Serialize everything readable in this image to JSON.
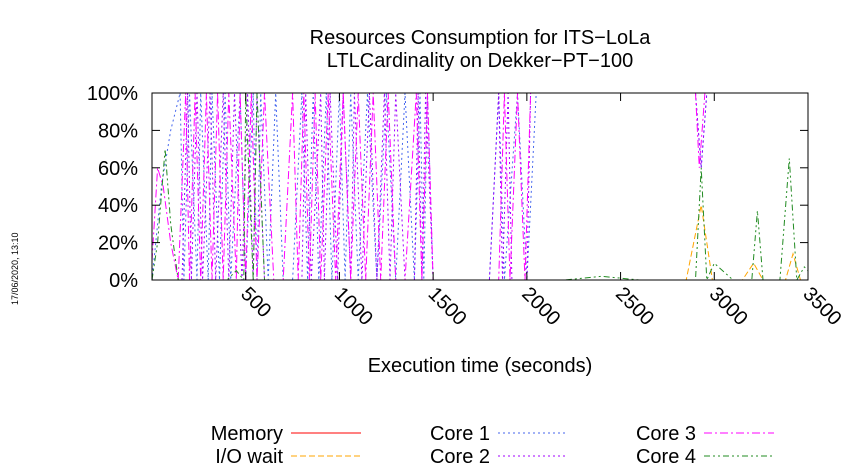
{
  "stamp": "17/06/2020, 13:10",
  "chart_data": {
    "type": "line",
    "title": "Resources Consumption for ITS−LoLa",
    "subtitle": "LTLCardinality on Dekker−PT−100",
    "xlabel": "Execution time (seconds)",
    "ylabel": "",
    "xlim": [
      0,
      3500
    ],
    "ylim": [
      0,
      100
    ],
    "xticks": [
      500,
      1000,
      1500,
      2000,
      2500,
      3000,
      3500
    ],
    "xtick_labels": [
      "500",
      "1000",
      "1500",
      "2000",
      "2500",
      "3000",
      "3500"
    ],
    "yticks": [
      0,
      20,
      40,
      60,
      80,
      100
    ],
    "ytick_labels": [
      "0%",
      "20%",
      "40%",
      "60%",
      "80%",
      "100%"
    ],
    "grid": false,
    "legend_position": "bottom",
    "series": [
      {
        "name": "Memory",
        "color": "#ff0000",
        "dash": "solid",
        "x": [
          0,
          3500
        ],
        "y": [
          0,
          0
        ]
      },
      {
        "name": "I/O wait",
        "color": "#ffa500",
        "dash": "dashed",
        "x": [
          0,
          2850,
          2930,
          2990,
          3150,
          3210,
          3260,
          3380,
          3420,
          3460,
          3500
        ],
        "y": [
          0,
          0,
          40,
          0,
          0,
          9,
          0,
          0,
          14,
          0,
          0
        ]
      },
      {
        "name": "Core 1",
        "color": "#4466ee",
        "dash": "dotted",
        "x": [
          0,
          50,
          100,
          150,
          170,
          200,
          240,
          260,
          300,
          320,
          360,
          390,
          420,
          470,
          500,
          540,
          560,
          580,
          620,
          660,
          700,
          750,
          800,
          830,
          860,
          890,
          930,
          960,
          1000,
          1030,
          1060,
          1100,
          1150,
          1200,
          1250,
          1300,
          1350,
          1400,
          1430,
          1450,
          1470,
          1500,
          1600,
          1800,
          1850,
          1880,
          1950,
          2000,
          2050,
          2900,
          2930,
          2960,
          3000,
          3200,
          3400,
          3500
        ],
        "y": [
          0,
          50,
          80,
          100,
          0,
          100,
          0,
          100,
          0,
          100,
          0,
          100,
          0,
          100,
          0,
          100,
          0,
          100,
          0,
          100,
          0,
          0,
          100,
          0,
          100,
          0,
          100,
          0,
          100,
          0,
          100,
          0,
          100,
          0,
          100,
          0,
          100,
          0,
          100,
          0,
          100,
          0,
          0,
          0,
          100,
          0,
          100,
          0,
          100,
          100,
          60,
          100,
          100,
          100,
          100,
          100
        ]
      },
      {
        "name": "Core 2",
        "color": "#a000ff",
        "dash": "dotted",
        "x": [
          0,
          100,
          160,
          190,
          210,
          240,
          270,
          310,
          340,
          380,
          410,
          440,
          480,
          510,
          540,
          560,
          600,
          650,
          700,
          800,
          820,
          850,
          900,
          920,
          950,
          990,
          1020,
          1060,
          1080,
          1120,
          1160,
          1200,
          1240,
          1270,
          1300,
          1350,
          1400,
          1420,
          1440,
          1460,
          1500,
          1800,
          1850,
          1870,
          1900,
          1920,
          2000,
          2020,
          2040,
          2900,
          2930,
          2960,
          3500
        ],
        "y": [
          0,
          0,
          0,
          100,
          0,
          100,
          0,
          100,
          0,
          100,
          0,
          100,
          0,
          100,
          0,
          100,
          0,
          0,
          0,
          0,
          100,
          0,
          100,
          0,
          100,
          0,
          100,
          0,
          100,
          0,
          100,
          0,
          100,
          0,
          100,
          0,
          0,
          100,
          0,
          100,
          0,
          0,
          100,
          0,
          100,
          0,
          0,
          100,
          100,
          100,
          60,
          100,
          100
        ]
      },
      {
        "name": "Core 3",
        "color": "#ff00ff",
        "dash": "dashdot",
        "x": [
          0,
          30,
          60,
          100,
          140,
          180,
          200,
          230,
          260,
          290,
          320,
          350,
          380,
          410,
          450,
          470,
          500,
          530,
          560,
          600,
          650,
          700,
          750,
          780,
          810,
          840,
          870,
          900,
          940,
          980,
          1020,
          1060,
          1100,
          1140,
          1180,
          1220,
          1260,
          1300,
          1350,
          1410,
          1440,
          1470,
          1500,
          1850,
          1880,
          1910,
          1950,
          1990,
          2020,
          2050,
          2900,
          2920,
          2950,
          3500
        ],
        "y": [
          10,
          60,
          50,
          20,
          0,
          100,
          0,
          100,
          0,
          100,
          0,
          100,
          0,
          100,
          0,
          100,
          0,
          100,
          0,
          100,
          0,
          0,
          100,
          0,
          100,
          0,
          100,
          0,
          100,
          0,
          100,
          0,
          100,
          0,
          100,
          0,
          100,
          0,
          0,
          100,
          0,
          100,
          0,
          0,
          100,
          0,
          100,
          0,
          100,
          100,
          100,
          60,
          100,
          100
        ]
      },
      {
        "name": "Core 4",
        "color": "#228b22",
        "dash": "dashdotdot",
        "x": [
          0,
          30,
          70,
          100,
          140,
          200,
          250,
          300,
          400,
          450,
          490,
          500,
          540,
          560,
          600,
          700,
          800,
          900,
          1000,
          1200,
          1400,
          1600,
          1800,
          2000,
          2200,
          2400,
          2600,
          2800,
          2900,
          2930,
          2960,
          3000,
          3100,
          3200,
          3230,
          3260,
          3350,
          3400,
          3440,
          3480,
          3500
        ],
        "y": [
          0,
          20,
          70,
          30,
          0,
          0,
          0,
          0,
          0,
          5,
          0,
          100,
          0,
          100,
          0,
          0,
          0,
          0,
          0,
          0,
          0,
          0,
          0,
          0,
          0,
          2,
          0,
          0,
          0,
          60,
          0,
          9,
          0,
          0,
          37,
          0,
          0,
          65,
          0,
          7,
          5
        ]
      }
    ]
  }
}
